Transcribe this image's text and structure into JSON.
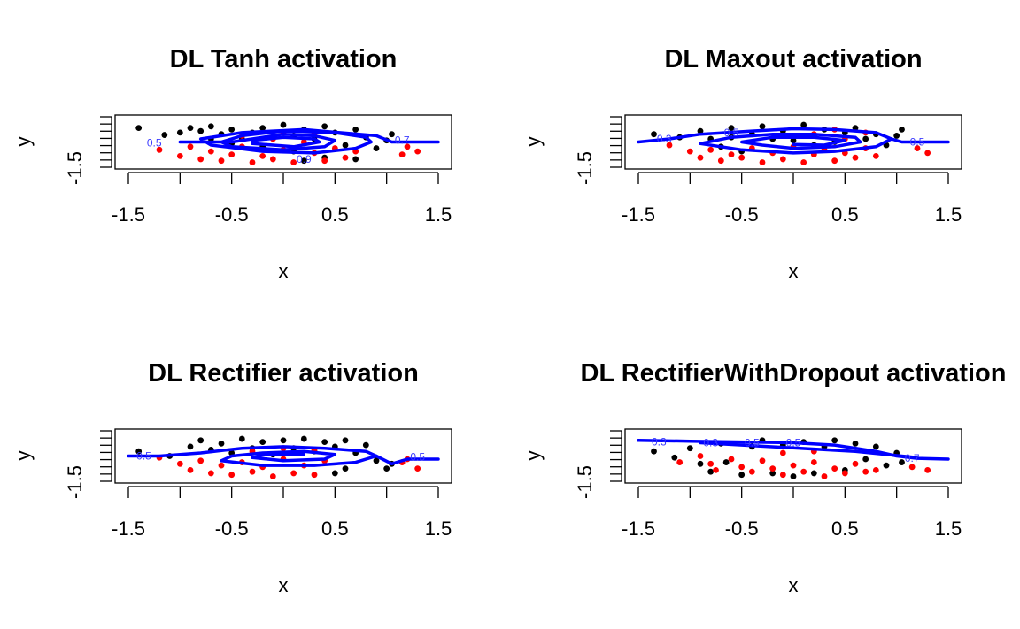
{
  "chart_data": [
    {
      "type": "scatter",
      "title": "DL Tanh activation",
      "xlabel": "x",
      "ylabel": "y",
      "xticks": [
        "-1.5",
        "-0.5",
        "0.5",
        "1.5"
      ],
      "yticks": [
        "-1.5"
      ],
      "xlim": [
        -1.5,
        1.5
      ],
      "ylim": [
        -1.5,
        1.5
      ],
      "grid": false,
      "series": [
        {
          "color": "#000000",
          "points": [
            [
              -1.4,
              0.9
            ],
            [
              -1.15,
              0.45
            ],
            [
              -1.0,
              0.6
            ],
            [
              -0.9,
              0.9
            ],
            [
              -0.8,
              0.7
            ],
            [
              -0.7,
              1.0
            ],
            [
              -0.6,
              0.5
            ],
            [
              -0.5,
              0.8
            ],
            [
              -0.4,
              0.2
            ],
            [
              -0.3,
              0.6
            ],
            [
              -0.2,
              0.9
            ],
            [
              -0.1,
              0.3
            ],
            [
              0.0,
              1.1
            ],
            [
              0.1,
              0.4
            ],
            [
              0.2,
              0.8
            ],
            [
              0.3,
              0.2
            ],
            [
              0.4,
              1.0
            ],
            [
              0.5,
              0.6
            ],
            [
              0.6,
              -0.2
            ],
            [
              0.7,
              0.8
            ],
            [
              0.8,
              0.3
            ],
            [
              0.9,
              -0.4
            ],
            [
              1.0,
              0.1
            ],
            [
              1.05,
              0.5
            ],
            [
              -0.2,
              -0.3
            ],
            [
              0.1,
              -0.6
            ],
            [
              0.4,
              -1.0
            ],
            [
              0.7,
              -1.1
            ],
            [
              -0.5,
              -0.1
            ],
            [
              0.2,
              -1.2
            ],
            [
              -0.7,
              0.2
            ]
          ]
        },
        {
          "color": "#ff0000",
          "points": [
            [
              -1.2,
              -0.5
            ],
            [
              -1.0,
              -0.9
            ],
            [
              -0.9,
              -0.3
            ],
            [
              -0.8,
              -1.1
            ],
            [
              -0.7,
              -0.6
            ],
            [
              -0.6,
              -1.2
            ],
            [
              -0.5,
              -0.8
            ],
            [
              -0.4,
              -0.3
            ],
            [
              -0.3,
              -1.3
            ],
            [
              -0.2,
              -0.9
            ],
            [
              -0.1,
              -1.1
            ],
            [
              0.0,
              -0.5
            ],
            [
              0.1,
              -1.3
            ],
            [
              0.2,
              0.0
            ],
            [
              0.3,
              -0.7
            ],
            [
              0.4,
              -1.2
            ],
            [
              0.5,
              -0.4
            ],
            [
              0.6,
              -1.0
            ],
            [
              0.7,
              -0.6
            ],
            [
              -0.4,
              0.4
            ],
            [
              -0.1,
              0.2
            ],
            [
              0.3,
              0.5
            ],
            [
              0.0,
              0.6
            ],
            [
              1.15,
              -0.8
            ],
            [
              1.2,
              -0.3
            ],
            [
              1.3,
              -0.6
            ]
          ]
        }
      ],
      "contour_labels": [
        "0.5",
        "0.7",
        "0.9"
      ]
    },
    {
      "type": "scatter",
      "title": "DL Maxout activation",
      "xlabel": "x",
      "ylabel": "y",
      "xticks": [
        "-1.5",
        "-0.5",
        "0.5",
        "1.5"
      ],
      "yticks": [
        "-1.5"
      ],
      "xlim": [
        -1.5,
        1.5
      ],
      "ylim": [
        -1.5,
        1.5
      ],
      "grid": false,
      "series": [
        {
          "color": "#000000",
          "points": [
            [
              -1.35,
              0.5
            ],
            [
              -1.1,
              0.3
            ],
            [
              -0.9,
              0.7
            ],
            [
              -0.8,
              0.2
            ],
            [
              -0.7,
              -0.3
            ],
            [
              -0.6,
              0.9
            ],
            [
              -0.5,
              -0.6
            ],
            [
              -0.4,
              0.5
            ],
            [
              -0.3,
              1.0
            ],
            [
              -0.2,
              0.2
            ],
            [
              -0.1,
              0.7
            ],
            [
              0.0,
              0.1
            ],
            [
              0.1,
              1.1
            ],
            [
              0.2,
              0.4
            ],
            [
              0.3,
              0.8
            ],
            [
              0.4,
              0.0
            ],
            [
              0.5,
              0.6
            ],
            [
              0.6,
              0.9
            ],
            [
              0.7,
              0.2
            ],
            [
              0.8,
              0.5
            ],
            [
              0.9,
              -0.2
            ],
            [
              1.0,
              0.4
            ],
            [
              1.05,
              0.8
            ],
            [
              -0.6,
              0.3
            ],
            [
              0.2,
              -0.2
            ]
          ]
        },
        {
          "color": "#ff0000",
          "points": [
            [
              -1.2,
              -0.2
            ],
            [
              -1.0,
              -0.6
            ],
            [
              -0.9,
              -1.0
            ],
            [
              -0.8,
              -0.5
            ],
            [
              -0.7,
              -1.2
            ],
            [
              -0.6,
              -0.8
            ],
            [
              -0.5,
              -1.0
            ],
            [
              -0.4,
              -0.4
            ],
            [
              -0.3,
              -1.3
            ],
            [
              -0.2,
              -0.7
            ],
            [
              -0.1,
              -1.1
            ],
            [
              0.0,
              -0.3
            ],
            [
              0.1,
              -1.3
            ],
            [
              0.2,
              -0.8
            ],
            [
              0.3,
              -0.5
            ],
            [
              0.4,
              -1.2
            ],
            [
              0.5,
              -0.7
            ],
            [
              0.6,
              -1.0
            ],
            [
              0.7,
              -0.4
            ],
            [
              0.8,
              -0.9
            ],
            [
              0.2,
              0.5
            ],
            [
              0.5,
              0.2
            ],
            [
              0.4,
              0.8
            ],
            [
              0.7,
              0.6
            ],
            [
              1.2,
              -0.4
            ],
            [
              1.3,
              -0.7
            ]
          ]
        }
      ],
      "contour_labels": [
        "0.3",
        "0.5",
        "0.5"
      ]
    },
    {
      "type": "scatter",
      "title": "DL Rectifier activation",
      "xlabel": "x",
      "ylabel": "y",
      "xticks": [
        "-1.5",
        "-0.5",
        "0.5",
        "1.5"
      ],
      "yticks": [
        "-1.5"
      ],
      "xlim": [
        -1.5,
        1.5
      ],
      "ylim": [
        -1.5,
        1.5
      ],
      "grid": false,
      "series": [
        {
          "color": "#000000",
          "points": [
            [
              -1.4,
              0.3
            ],
            [
              -1.1,
              0.0
            ],
            [
              -0.9,
              0.6
            ],
            [
              -0.8,
              1.0
            ],
            [
              -0.7,
              0.4
            ],
            [
              -0.6,
              0.8
            ],
            [
              -0.5,
              0.2
            ],
            [
              -0.4,
              1.1
            ],
            [
              -0.3,
              0.5
            ],
            [
              -0.2,
              0.9
            ],
            [
              -0.1,
              0.1
            ],
            [
              0.0,
              1.0
            ],
            [
              0.1,
              0.5
            ],
            [
              0.2,
              1.1
            ],
            [
              0.3,
              0.3
            ],
            [
              0.4,
              0.9
            ],
            [
              0.5,
              0.6
            ],
            [
              0.6,
              1.0
            ],
            [
              0.7,
              0.2
            ],
            [
              0.8,
              0.7
            ],
            [
              0.9,
              -0.3
            ],
            [
              1.0,
              -0.8
            ],
            [
              1.05,
              -0.5
            ],
            [
              0.6,
              -0.8
            ],
            [
              0.5,
              -1.1
            ]
          ]
        },
        {
          "color": "#ff0000",
          "points": [
            [
              -1.2,
              -0.1
            ],
            [
              -1.0,
              -0.5
            ],
            [
              -0.9,
              -0.9
            ],
            [
              -0.8,
              -0.3
            ],
            [
              -0.7,
              -1.1
            ],
            [
              -0.6,
              -0.6
            ],
            [
              -0.5,
              -1.2
            ],
            [
              -0.4,
              -0.4
            ],
            [
              -0.3,
              -1.0
            ],
            [
              -0.2,
              -0.7
            ],
            [
              -0.1,
              -1.3
            ],
            [
              0.0,
              -0.2
            ],
            [
              0.1,
              -1.1
            ],
            [
              0.2,
              -0.6
            ],
            [
              0.3,
              -1.2
            ],
            [
              0.4,
              -0.3
            ],
            [
              -0.3,
              0.3
            ],
            [
              0.0,
              0.5
            ],
            [
              0.3,
              0.4
            ],
            [
              1.15,
              -0.4
            ],
            [
              1.3,
              -0.8
            ],
            [
              1.2,
              -0.2
            ]
          ]
        }
      ],
      "contour_labels": [
        "0.5",
        "0.5"
      ]
    },
    {
      "type": "scatter",
      "title": "DL RectifierWithDropout activation",
      "xlabel": "x",
      "ylabel": "y",
      "xticks": [
        "-1.5",
        "-0.5",
        "0.5",
        "1.5"
      ],
      "yticks": [
        "-1.5"
      ],
      "xlim": [
        -1.5,
        1.5
      ],
      "ylim": [
        -1.5,
        1.5
      ],
      "grid": false,
      "series": [
        {
          "color": "#000000",
          "points": [
            [
              -1.35,
              0.3
            ],
            [
              -1.15,
              -0.1
            ],
            [
              -1.0,
              0.5
            ],
            [
              -0.9,
              -0.5
            ],
            [
              -0.8,
              -1.0
            ],
            [
              -0.7,
              0.8
            ],
            [
              -0.65,
              -0.4
            ],
            [
              -0.5,
              -1.2
            ],
            [
              -0.4,
              0.6
            ],
            [
              -0.3,
              1.0
            ],
            [
              -0.2,
              -1.1
            ],
            [
              -0.1,
              0.7
            ],
            [
              0.0,
              -1.3
            ],
            [
              0.1,
              0.9
            ],
            [
              0.2,
              -1.1
            ],
            [
              0.3,
              0.6
            ],
            [
              0.4,
              1.0
            ],
            [
              0.5,
              -0.9
            ],
            [
              0.6,
              0.8
            ],
            [
              0.7,
              -0.2
            ],
            [
              0.8,
              0.6
            ],
            [
              0.9,
              -0.6
            ],
            [
              1.0,
              0.2
            ],
            [
              1.05,
              -0.4
            ]
          ]
        },
        {
          "color": "#ff0000",
          "points": [
            [
              -1.1,
              -0.4
            ],
            [
              -0.9,
              0.0
            ],
            [
              -0.8,
              -0.5
            ],
            [
              -0.75,
              -0.9
            ],
            [
              -0.6,
              -0.2
            ],
            [
              -0.5,
              -0.7
            ],
            [
              -0.4,
              -1.0
            ],
            [
              -0.3,
              -0.3
            ],
            [
              -0.2,
              -0.8
            ],
            [
              -0.1,
              -1.2
            ],
            [
              0.0,
              -0.6
            ],
            [
              0.1,
              -1.0
            ],
            [
              0.2,
              -0.4
            ],
            [
              0.3,
              -1.3
            ],
            [
              0.4,
              -0.8
            ],
            [
              0.5,
              -1.1
            ],
            [
              0.6,
              -0.5
            ],
            [
              0.7,
              -1.0
            ],
            [
              -0.1,
              0.2
            ],
            [
              0.2,
              0.3
            ],
            [
              1.15,
              -0.7
            ],
            [
              1.3,
              -0.9
            ],
            [
              0.8,
              -0.9
            ]
          ]
        }
      ],
      "contour_labels": [
        "0.3",
        "0.3",
        "0.5",
        "0.5",
        "0.7"
      ]
    }
  ]
}
